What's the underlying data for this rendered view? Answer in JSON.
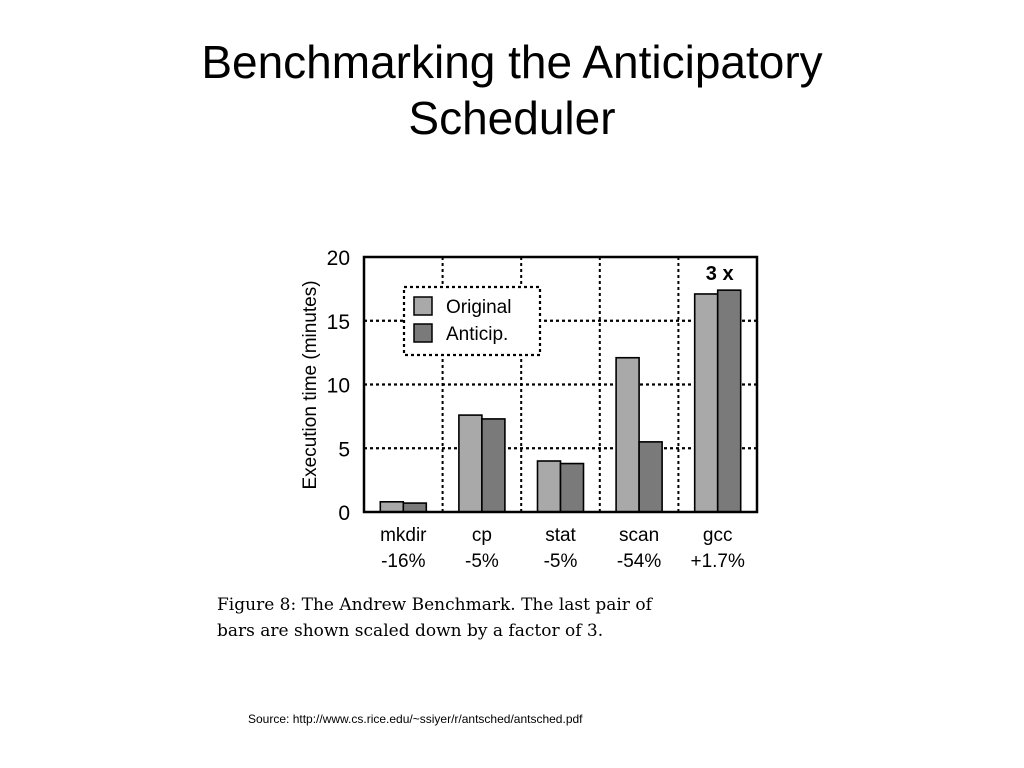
{
  "slide": {
    "title_line1": "Benchmarking the Anticipatory",
    "title_line2": "Scheduler"
  },
  "chart_data": {
    "type": "bar",
    "ylabel": "Execution time (minutes)",
    "ylim": [
      0,
      20
    ],
    "yticks": [
      0,
      5,
      10,
      15,
      20
    ],
    "grid": true,
    "legend_position": "top-left",
    "categories": [
      "mkdir",
      "cp",
      "stat",
      "scan",
      "gcc"
    ],
    "category_sublabels": [
      "-16%",
      "-5%",
      "-5%",
      "-54%",
      "+1.7%"
    ],
    "series": [
      {
        "name": "Original",
        "color": "#a9a9a9",
        "values": [
          0.8,
          7.6,
          4.0,
          12.1,
          17.1
        ]
      },
      {
        "name": "Anticip.",
        "color": "#7a7a7a",
        "values": [
          0.7,
          7.3,
          3.8,
          5.5,
          17.4
        ]
      }
    ],
    "annotation": "3 x",
    "annotation_category": "gcc"
  },
  "figure": {
    "caption_line1": "Figure 8:  The Andrew Benchmark.  The last pair of",
    "caption_line2": "bars are shown scaled down by a factor of 3."
  },
  "source": {
    "text": "Source:  http://www.cs.rice.edu/~ssiyer/r/antsched/antsched.pdf"
  }
}
